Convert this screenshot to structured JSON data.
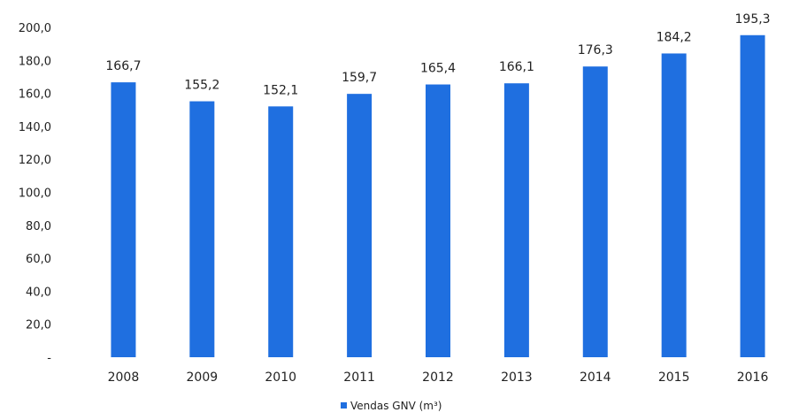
{
  "chart_data": {
    "type": "bar",
    "categories": [
      "2008",
      "2009",
      "2010",
      "2011",
      "2012",
      "2013",
      "2014",
      "2015",
      "2016"
    ],
    "series": [
      {
        "name": "Vendas GNV (m³)",
        "values": [
          166.7,
          155.2,
          152.1,
          159.7,
          165.4,
          166.1,
          176.3,
          184.2,
          195.3
        ],
        "value_labels": [
          "166,7",
          "155,2",
          "152,1",
          "159,7",
          "165,4",
          "166,1",
          "176,3",
          "184,2",
          "195,3"
        ]
      }
    ],
    "ylim": [
      0,
      200
    ],
    "yticks": [
      "-",
      "20,0",
      "40,0",
      "60,0",
      "80,0",
      "100,0",
      "120,0",
      "140,0",
      "160,0",
      "180,0",
      "200,0"
    ],
    "ytick_values": [
      0,
      20,
      40,
      60,
      80,
      100,
      120,
      140,
      160,
      180,
      200
    ],
    "grid": false,
    "legend_position": "bottom",
    "bar_color": "#1f6fe0"
  }
}
